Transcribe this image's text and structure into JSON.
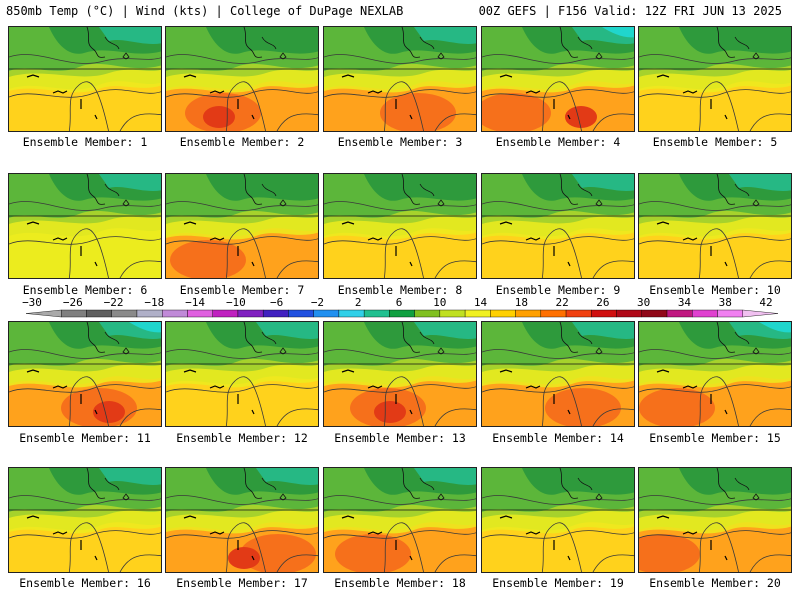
{
  "header": {
    "left": "850mb Temp (°C) | Wind (kts) | College of DuPage NEXLAB",
    "right": "00Z GEFS | F156 Valid: 12Z FRI JUN 13 2025"
  },
  "colorbar": {
    "labels": [
      "−30",
      "−26",
      "−22",
      "−18",
      "−14",
      "−10",
      "−6",
      "−2",
      "2",
      "6",
      "10",
      "14",
      "18",
      "22",
      "26",
      "30",
      "34",
      "38",
      "42"
    ],
    "colors": [
      "#a9a9a9",
      "#7f7f7f",
      "#5f5f5f",
      "#8a8a8a",
      "#b0b0c8",
      "#c08ad8",
      "#e060e0",
      "#c020c0",
      "#8020c0",
      "#4020c0",
      "#2050e0",
      "#2090f0",
      "#30d0e8",
      "#20c090",
      "#10a040",
      "#80c020",
      "#c0e020",
      "#f0f020",
      "#ffd000",
      "#ffa000",
      "#ff7000",
      "#f04010",
      "#d01010",
      "#b00818",
      "#900818",
      "#c01880",
      "#e040d0",
      "#f080f0",
      "#f0c0f0"
    ]
  },
  "palette": {
    "green_dark": "#2e9a3c",
    "green": "#5cb63a",
    "yellowgreen": "#a6d22c",
    "yellow": "#ecec1e",
    "gold": "#ffd21c",
    "orange": "#ffa21c",
    "redorange": "#f56a1c",
    "red": "#e23a16",
    "teal": "#26b884",
    "cyan": "#20d6cc"
  },
  "panels": [
    {
      "label": "Ensemble Member: 1",
      "warmth": 1,
      "cool": 1
    },
    {
      "label": "Ensemble Member: 2",
      "warmth": 3,
      "cool": 0
    },
    {
      "label": "Ensemble Member: 3",
      "warmth": 2,
      "cool": 1
    },
    {
      "label": "Ensemble Member: 4",
      "warmth": 3,
      "cool": 2
    },
    {
      "label": "Ensemble Member: 5",
      "warmth": 1,
      "cool": 0
    },
    {
      "label": "Ensemble Member: 6",
      "warmth": 0,
      "cool": 1
    },
    {
      "label": "Ensemble Member: 7",
      "warmth": 2,
      "cool": 0
    },
    {
      "label": "Ensemble Member: 8",
      "warmth": 1,
      "cool": 0
    },
    {
      "label": "Ensemble Member: 9",
      "warmth": 1,
      "cool": 1
    },
    {
      "label": "Ensemble Member: 10",
      "warmth": 1,
      "cool": 1
    },
    {
      "label": "Ensemble Member: 11",
      "warmth": 3,
      "cool": 2
    },
    {
      "label": "Ensemble Member: 12",
      "warmth": 1,
      "cool": 1
    },
    {
      "label": "Ensemble Member: 13",
      "warmth": 3,
      "cool": 1
    },
    {
      "label": "Ensemble Member: 14",
      "warmth": 2,
      "cool": 1
    },
    {
      "label": "Ensemble Member: 15",
      "warmth": 2,
      "cool": 2
    },
    {
      "label": "Ensemble Member: 16",
      "warmth": 1,
      "cool": 1
    },
    {
      "label": "Ensemble Member: 17",
      "warmth": 3,
      "cool": 1
    },
    {
      "label": "Ensemble Member: 18",
      "warmth": 2,
      "cool": 1
    },
    {
      "label": "Ensemble Member: 19",
      "warmth": 1,
      "cool": 0
    },
    {
      "label": "Ensemble Member: 20",
      "warmth": 2,
      "cool": 0
    }
  ]
}
